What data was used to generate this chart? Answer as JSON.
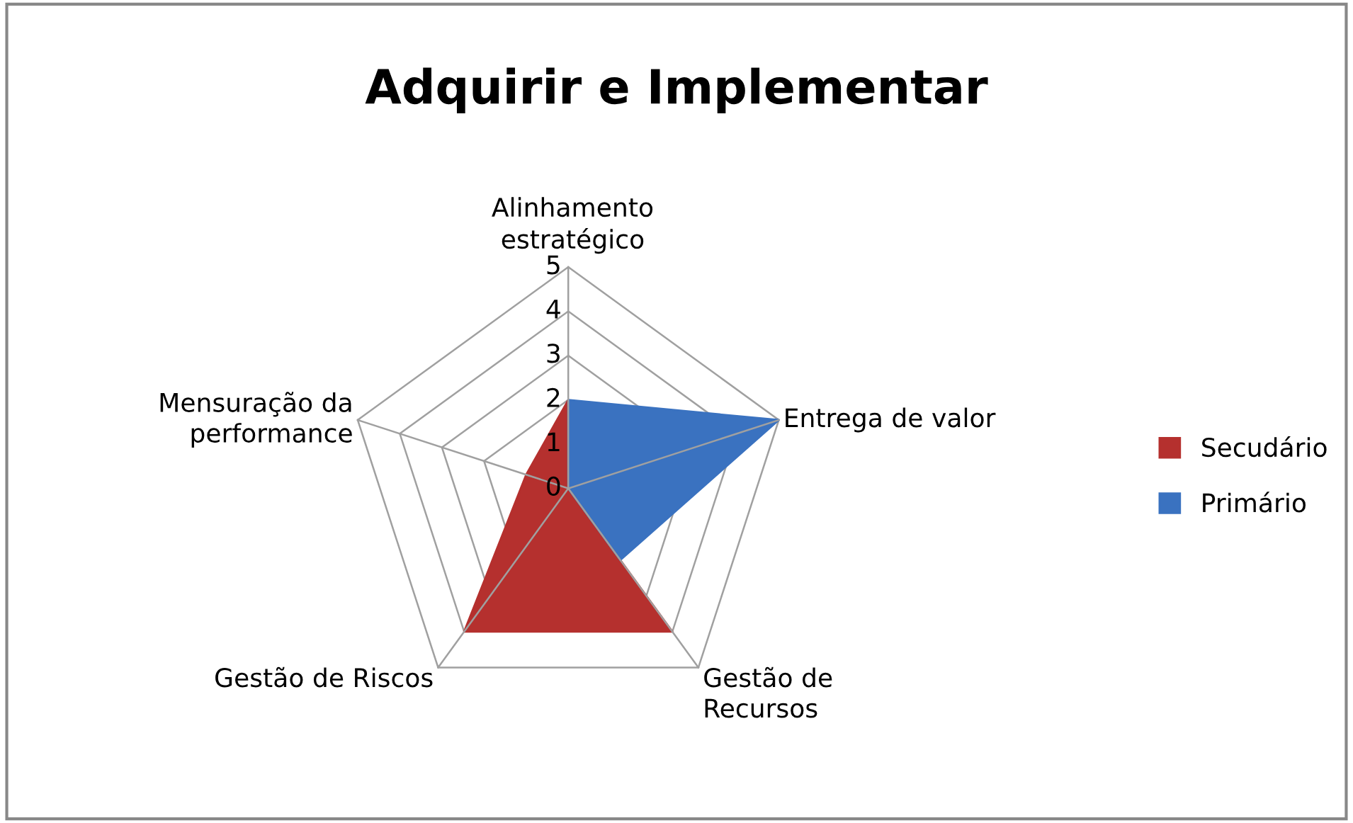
{
  "chart_data": {
    "type": "radar",
    "title": "Adquirir e Implementar",
    "categories": [
      "Alinhamento\nestratégico",
      "Entrega de valor",
      "Gestão de\nRecursos",
      "Gestão de Riscos",
      "Mensuração da\nperformance"
    ],
    "series": [
      {
        "name": "Secudário",
        "color": "#b5302e",
        "values": [
          2,
          0,
          4,
          4,
          1
        ]
      },
      {
        "name": "Primário",
        "color": "#3a72c0",
        "values": [
          2,
          5,
          2,
          0,
          0
        ]
      }
    ],
    "ylim": [
      0,
      5
    ],
    "yticks": [
      0,
      1,
      2,
      3,
      4,
      5
    ],
    "grid": true,
    "legend": "right"
  }
}
